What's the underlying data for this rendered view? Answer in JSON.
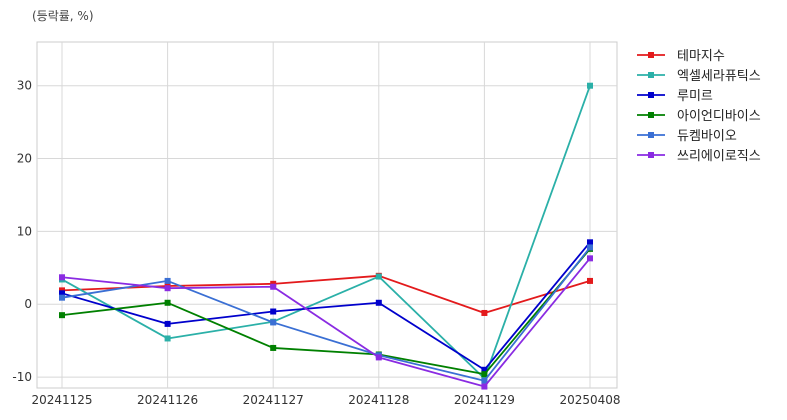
{
  "chart_data": {
    "type": "line",
    "title": "",
    "xlabel": "",
    "ylabel": "(등락률, %)",
    "categories": [
      "20241125",
      "20241126",
      "20241127",
      "20241128",
      "20241129",
      "20250408"
    ],
    "ylim": [
      -11.5,
      36
    ],
    "yticks": [
      -10,
      0,
      10,
      20,
      30
    ],
    "grid": true,
    "legend_position": "right",
    "series": [
      {
        "name": "테마지수",
        "color": "#e31a1c",
        "values": [
          1.9,
          2.5,
          2.8,
          3.9,
          -1.2,
          3.2
        ]
      },
      {
        "name": "엑셀세라퓨틱스",
        "color": "#2bb0a8",
        "values": [
          3.4,
          -4.7,
          -2.4,
          3.8,
          -10.2,
          30.0
        ]
      },
      {
        "name": "루미르",
        "color": "#0000cc",
        "values": [
          1.5,
          -2.7,
          -1.0,
          0.2,
          -9.0,
          8.5
        ]
      },
      {
        "name": "아이언디바이스",
        "color": "#008000",
        "values": [
          -1.5,
          0.2,
          -6.0,
          -6.9,
          -9.6,
          7.6
        ]
      },
      {
        "name": "듀켐바이오",
        "color": "#3a6fd4",
        "values": [
          0.9,
          3.2,
          -2.5,
          -7.0,
          -10.5,
          7.8
        ]
      },
      {
        "name": "쓰리에이로직스",
        "color": "#8a2be2",
        "values": [
          3.7,
          2.2,
          2.4,
          -7.3,
          -11.3,
          6.3
        ]
      }
    ]
  }
}
